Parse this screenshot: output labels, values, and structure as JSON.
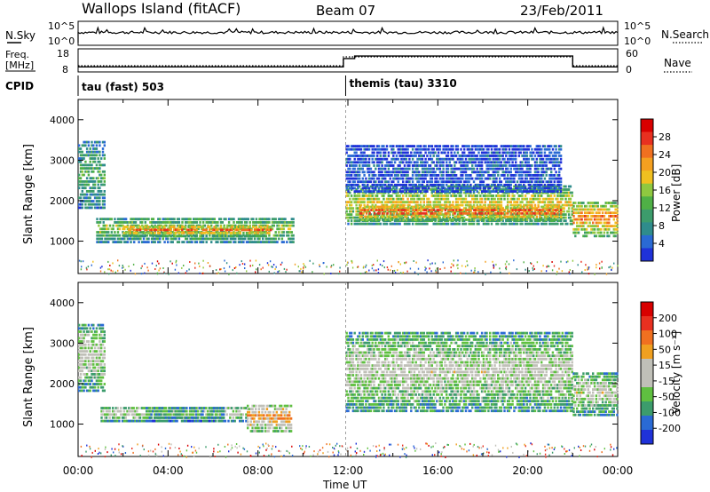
{
  "header": {
    "station": "Wallops Island (fitACF)",
    "beam": "Beam 07",
    "date": "23/Feb/2011"
  },
  "top_panel": {
    "left_label": "N.Sky",
    "right_label": "N.Search",
    "left_ticks": [
      "10^5",
      "10^0"
    ],
    "right_ticks": [
      "10^5",
      "10^0"
    ]
  },
  "freq_panel": {
    "left_label_1": "Freq.",
    "left_label_2": "[MHz]",
    "right_label": "Nave",
    "left_ticks": [
      "18",
      "8"
    ],
    "right_ticks": [
      "60",
      "0"
    ],
    "freq_steps": [
      {
        "t": 0.0,
        "freq": 10.2
      },
      {
        "t": 11.8,
        "freq": 10.2
      },
      {
        "t": 11.8,
        "freq": 13.8
      },
      {
        "t": 12.3,
        "freq": 13.8
      },
      {
        "t": 12.3,
        "freq": 14.9
      },
      {
        "t": 22.0,
        "freq": 14.9
      },
      {
        "t": 22.0,
        "freq": 10.2
      },
      {
        "t": 24.0,
        "freq": 10.2
      }
    ]
  },
  "cpid": {
    "label": "CPID",
    "modes": [
      {
        "label": "tau (fast) 503",
        "start": 0.0
      },
      {
        "label": "themis (tau) 3310",
        "start": 11.9
      }
    ]
  },
  "colors": {
    "power": [
      "#1f32d8",
      "#2a6ad4",
      "#2f8c8c",
      "#3c9c6c",
      "#4fb046",
      "#8fc840",
      "#f0c020",
      "#f4a020",
      "#f07020",
      "#e83020",
      "#d80000"
    ],
    "velocity": [
      "#1f32d8",
      "#2a6ad4",
      "#3c9c6c",
      "#5fc040",
      "#c0c0b8",
      "#c0c0b8",
      "#f0a020",
      "#f07020",
      "#e83020",
      "#d80000"
    ]
  },
  "chart_data": [
    {
      "type": "heatmap",
      "parameter": "power",
      "xlabel": "",
      "ylabel": "Slant Range [km]",
      "xlim": [
        0,
        24
      ],
      "ylim": [
        200,
        4500
      ],
      "yticks": [
        "1000",
        "2000",
        "3000",
        "4000"
      ],
      "colorbar_label": "Power [dB]",
      "colorbar_ticks": [
        "28",
        "24",
        "20",
        "16",
        "12",
        "8",
        "4"
      ],
      "bands": [
        {
          "t0": 0.0,
          "t1": 1.2,
          "r0": 1800,
          "r1": 3500,
          "level": 0.35
        },
        {
          "t0": 0.8,
          "t1": 9.6,
          "r0": 950,
          "r1": 1600,
          "level": 0.45
        },
        {
          "t0": 2.0,
          "t1": 8.6,
          "r0": 1100,
          "r1": 1400,
          "level": 0.7
        },
        {
          "t0": 11.9,
          "t1": 22.0,
          "r0": 1400,
          "r1": 2400,
          "level": 0.55
        },
        {
          "t0": 12.5,
          "t1": 21.5,
          "r0": 1500,
          "r1": 1900,
          "level": 0.8
        },
        {
          "t0": 11.9,
          "t1": 21.5,
          "r0": 2200,
          "r1": 3400,
          "level": 0.12
        },
        {
          "t0": 22.0,
          "t1": 24.0,
          "r0": 1100,
          "r1": 2000,
          "level": 0.7
        }
      ]
    },
    {
      "type": "heatmap",
      "parameter": "velocity",
      "xlabel": "Time UT",
      "ylabel": "Slant Range [km]",
      "xlim": [
        0,
        24
      ],
      "ylim": [
        200,
        4500
      ],
      "xticks": [
        "00:00",
        "04:00",
        "08:00",
        "12:00",
        "16:00",
        "20:00",
        "00:00"
      ],
      "yticks": [
        "1000",
        "2000",
        "3000",
        "4000"
      ],
      "colorbar_label": "Velocity [m s⁻¹]",
      "colorbar_ticks": [
        "200",
        "100",
        "50",
        "15",
        "-15",
        "-50",
        "-100",
        "-200"
      ],
      "bands": [
        {
          "t0": 0.0,
          "t1": 1.2,
          "r0": 1800,
          "r1": 3500,
          "level": 0.45
        },
        {
          "t0": 1.0,
          "t1": 7.5,
          "r0": 1050,
          "r1": 1450,
          "level": 0.45
        },
        {
          "t0": 3.0,
          "t1": 6.5,
          "r0": 1050,
          "r1": 1450,
          "level": 0.3
        },
        {
          "t0": 7.5,
          "t1": 9.5,
          "r0": 800,
          "r1": 1500,
          "level": 0.65
        },
        {
          "t0": 11.9,
          "t1": 22.0,
          "r0": 1300,
          "r1": 3300,
          "level": 0.45
        },
        {
          "t0": 22.0,
          "t1": 24.0,
          "r0": 1200,
          "r1": 2300,
          "level": 0.45
        }
      ]
    }
  ]
}
